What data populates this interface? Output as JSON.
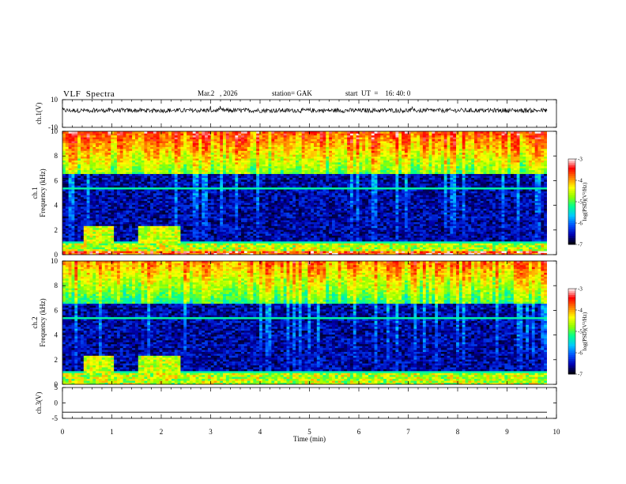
{
  "header": {
    "title": "VLF  Spectra",
    "date": "Mar.2   , 2026",
    "station": "station= GAK",
    "start": "start  UT  =    16: 40: 0"
  },
  "chart_data": [
    {
      "type": "line",
      "name": "ch1-waveform",
      "ylabel": "ch.1(V)",
      "ylim": [
        -10,
        10
      ],
      "yticks": [
        10,
        -10
      ],
      "description_series": "noisy waveform around ~+3 V"
    },
    {
      "type": "heatmap",
      "name": "ch1-spectrogram",
      "ylabel": "ch.1\nFrequency  (kHz)",
      "ylim": [
        0,
        10
      ],
      "yticks": [
        0,
        2,
        4,
        6,
        8,
        10
      ],
      "colorbar": {
        "label": "log(PSD)(V²/Hz)",
        "range": [
          -7,
          -3
        ],
        "ticks": [
          -3,
          -4,
          -5,
          -6,
          -7
        ]
      }
    },
    {
      "type": "heatmap",
      "name": "ch2-spectrogram",
      "ylabel": "ch.2\nFrequency  (kHz)",
      "ylim": [
        0,
        10
      ],
      "yticks": [
        0,
        2,
        4,
        6,
        8,
        10
      ],
      "colorbar": {
        "label": "log(PSD)(V²/Hz)",
        "range": [
          -7,
          -3
        ],
        "ticks": [
          -3,
          -4,
          -5,
          -6,
          -7
        ]
      }
    },
    {
      "type": "line",
      "name": "ch3-waveform",
      "ylabel": "ch.3(V)",
      "ylim": [
        -5,
        5
      ],
      "yticks": [
        5,
        0,
        -5
      ],
      "constant_value": -3
    }
  ],
  "xaxis": {
    "label": "Time  (min)",
    "ticks": [
      0,
      1,
      2,
      3,
      4,
      5,
      6,
      7,
      8,
      9,
      10
    ],
    "xlim": [
      0,
      10
    ]
  },
  "colors": {
    "scale": [
      "#000000",
      "#0000b0",
      "#0050ff",
      "#00c8ff",
      "#00ff90",
      "#90ff00",
      "#ffff00",
      "#ff8000",
      "#ff0000",
      "#ffffff"
    ]
  }
}
